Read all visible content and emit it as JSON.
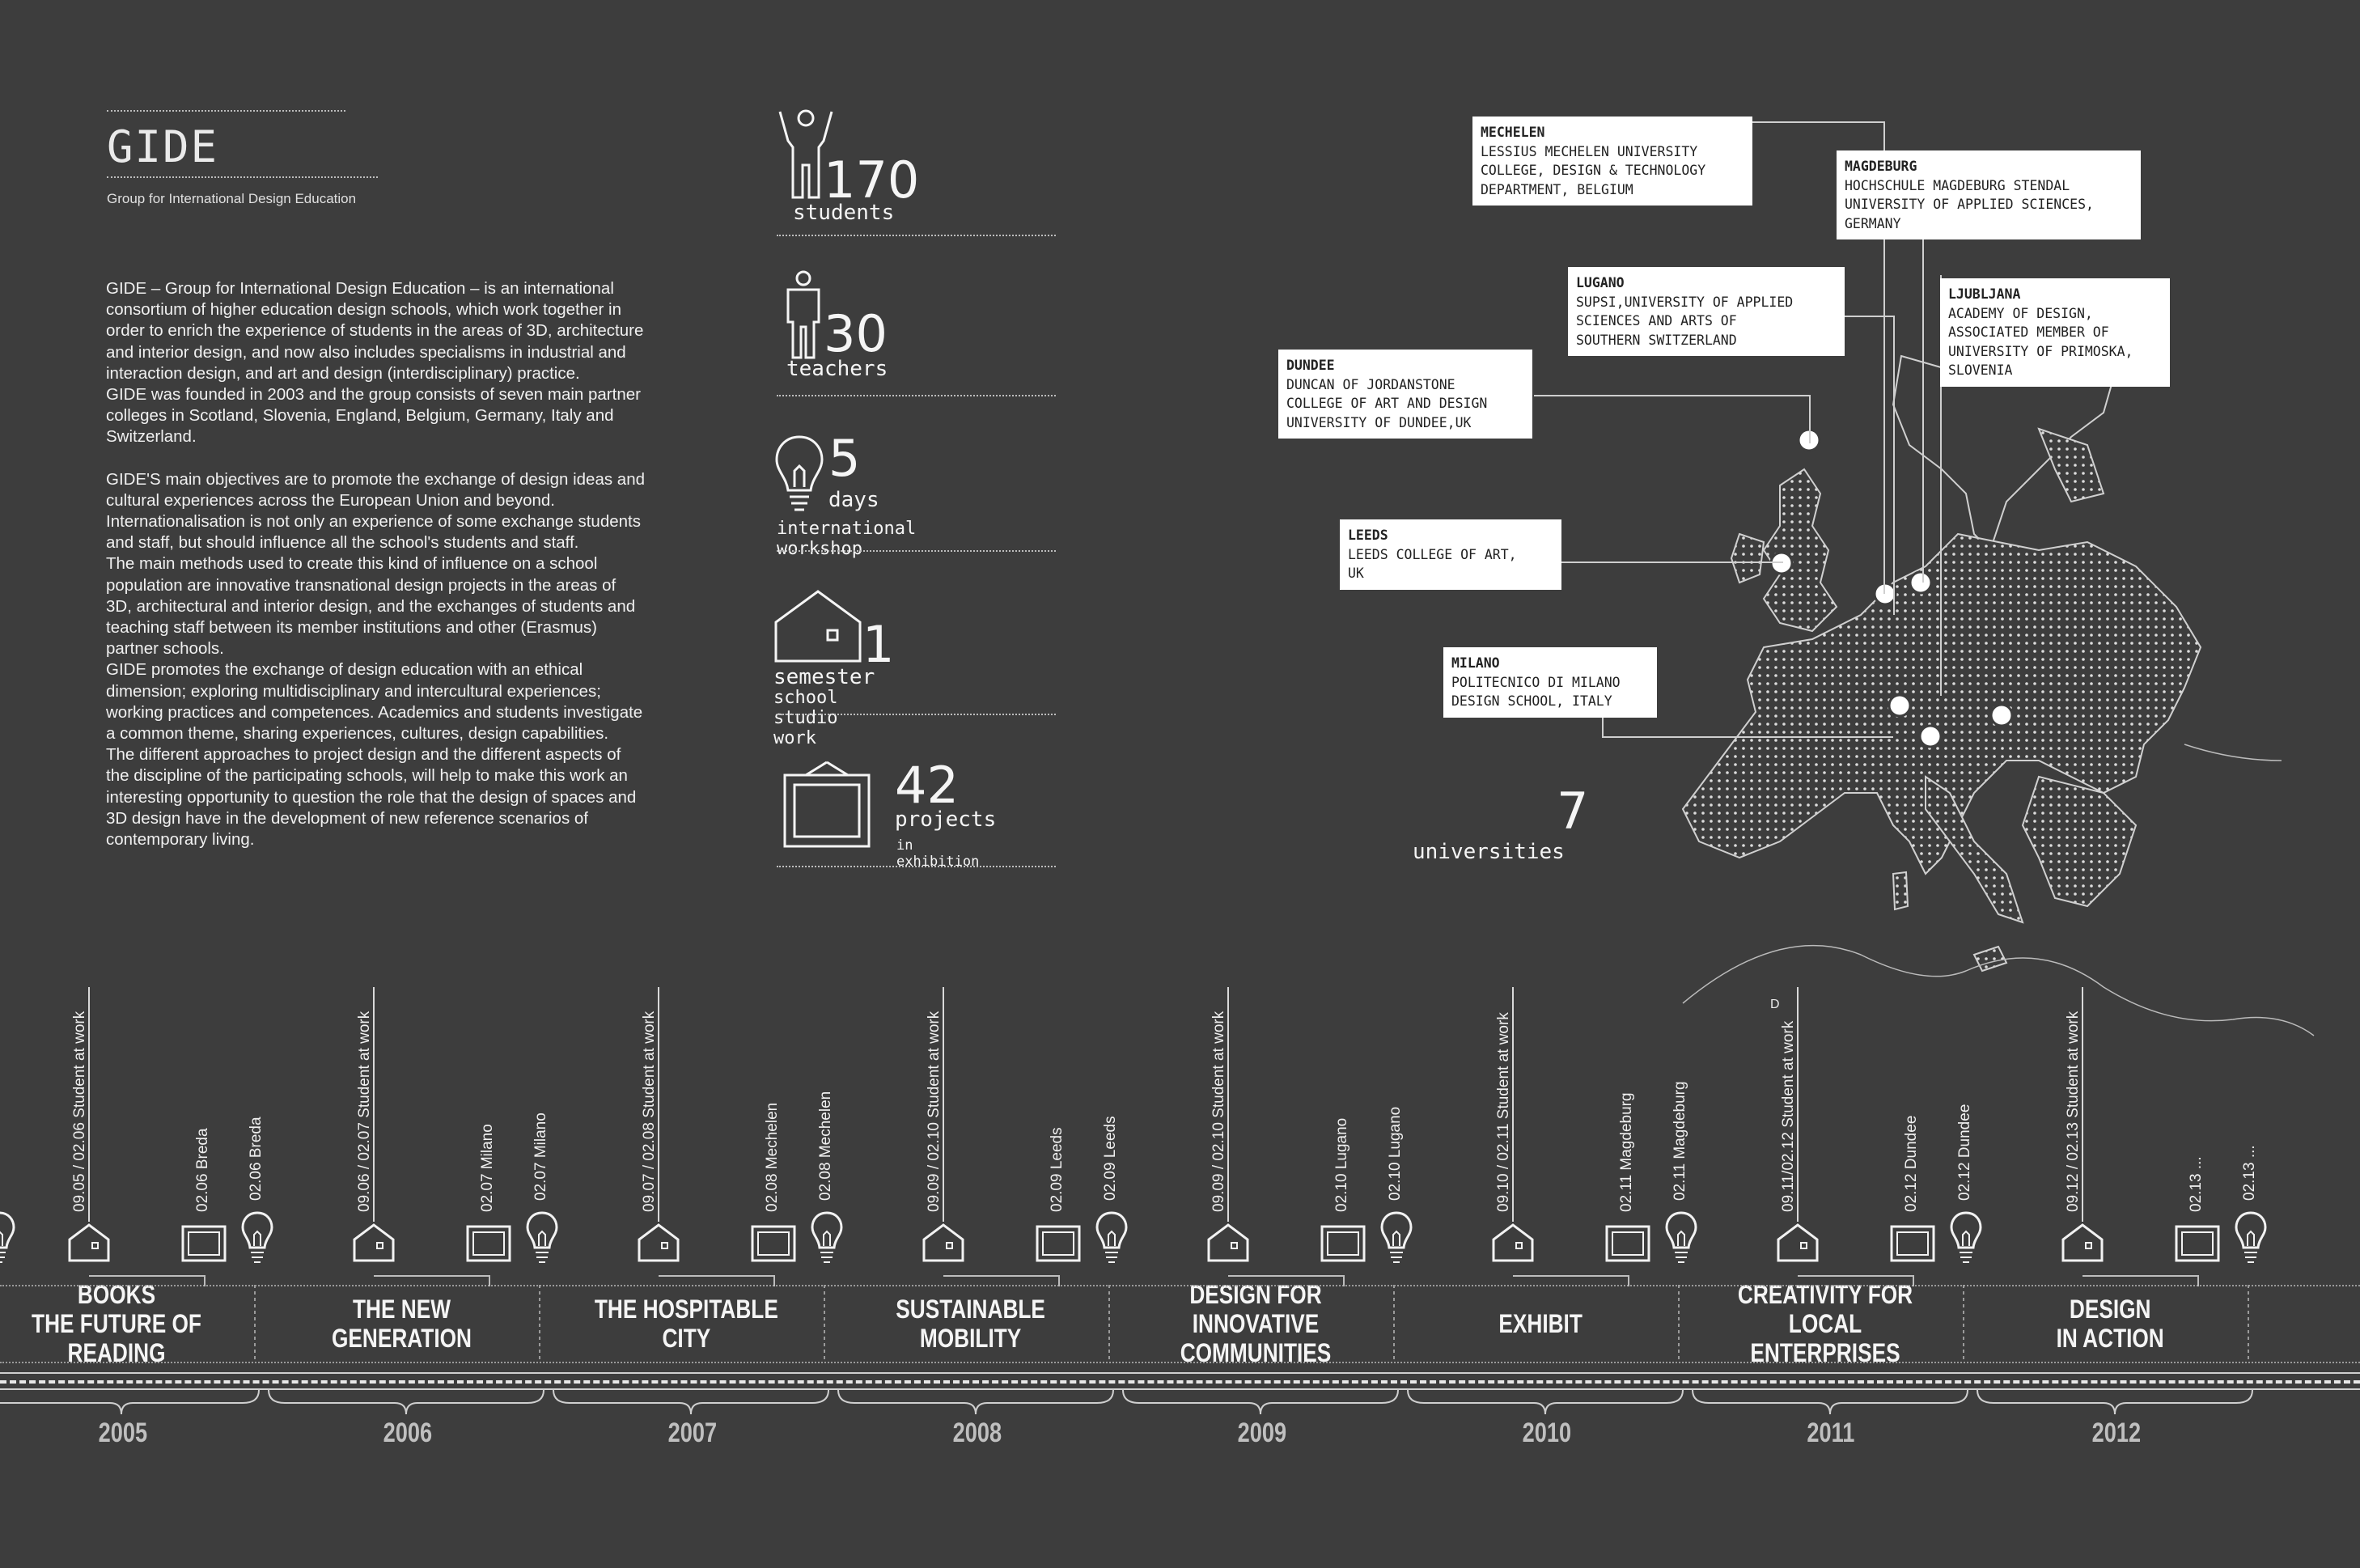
{
  "header": {
    "logo": "GIDE",
    "subtitle": "Group for International Design Education"
  },
  "intro": {
    "p1": "GIDE – Group for International Design Education – is an international\nconsortium of higher education design schools, which work together in\norder to enrich the experience of students in the areas of 3D, architecture\nand interior design, and now also includes specialisms in industrial and\ninteraction design, and art and design (interdisciplinary) practice.\nGIDE was founded in 2003 and the group consists of seven main partner\ncolleges in Scotland, Slovenia, England, Belgium, Germany, Italy and\nSwitzerland.",
    "p2": "GIDE'S main objectives are to promote the exchange of design ideas and\ncultural experiences across the European Union and beyond.\nInternationalisation is not only an experience of some exchange students\nand staff, but should influence all the school's students and staff.\n The main methods used to create this kind of influence on a school\npopulation are innovative transnational design projects in the areas of\n3D, architectural and interior design, and the exchanges of students and\nteaching staff between its member institutions and other (Erasmus)\npartner schools.\nGIDE promotes the exchange of design education with an ethical\ndimension; exploring multidisciplinary and intercultural experiences;\nworking practices and competences. Academics and students investigate\na common theme, sharing experiences, cultures, design capabilities.\nThe different approaches to project design and the different aspects of\nthe discipline of the participating schools, will help to make this work an\ninteresting opportunity to question the role that the design of spaces and\n3D design have in the development of new reference scenarios of\ncontemporary living."
  },
  "stats": {
    "students": {
      "num": "170",
      "label": "students"
    },
    "teachers": {
      "num": "30",
      "label": "teachers"
    },
    "days": {
      "num": "5",
      "label": "days",
      "sub": "international workshop"
    },
    "semester": {
      "num": "1",
      "label": "semester",
      "sub": "school studio work"
    },
    "projects": {
      "num": "42",
      "label": "projects",
      "sub": "in exhibition"
    },
    "universities": {
      "num": "7",
      "label": "universities"
    }
  },
  "universities": [
    {
      "city": "MECHELEN",
      "name": "LESSIUS MECHELEN UNIVERSITY\nCOLLEGE, DESIGN & TECHNOLOGY\nDEPARTMENT, BELGIUM"
    },
    {
      "city": "MAGDEBURG",
      "name": "HOCHSCHULE MAGDEBURG STENDAL\nUNIVERSITY OF APPLIED SCIENCES,\nGERMANY"
    },
    {
      "city": "LUGANO",
      "name": "SUPSI,UNIVERSITY OF APPLIED\nSCIENCES AND ARTS OF\nSOUTHERN SWITZERLAND"
    },
    {
      "city": "LJUBLJANA",
      "name": "ACADEMY OF DESIGN,\nASSOCIATED MEMBER OF\nUNIVERSITY OF PRIMOSKA,\nSLOVENIA"
    },
    {
      "city": "DUNDEE",
      "name": "DUNCAN OF JORDANSTONE\nCOLLEGE OF ART AND DESIGN\nUNIVERSITY OF DUNDEE,UK"
    },
    {
      "city": "LEEDS",
      "name": "LEEDS COLLEGE OF ART,\nUK"
    },
    {
      "city": "MILANO",
      "name": "POLITECNICO DI MILANO\nDESIGN SCHOOL, ITALY"
    }
  ],
  "map": {
    "marker": "D"
  },
  "timeline": {
    "themes": [
      "BOOKS\nTHE FUTURE OF READING",
      "THE NEW\nGENERATION",
      "THE HOSPITABLE\nCITY",
      "SUSTAINABLE\nMOBILITY",
      "DESIGN FOR INNOVATIVE\nCOMMUNITIES",
      "EXHIBIT",
      "CREATIVITY FOR LOCAL\nENTERPRISES",
      "DESIGN\nIN ACTION"
    ],
    "years": [
      "2005",
      "2006",
      "2007",
      "2008",
      "2009",
      "2010",
      "2011",
      "2012"
    ],
    "events": [
      [
        "09.05 / 02.06 Student at work",
        "02.06 Breda",
        "02.06 Breda"
      ],
      [
        "09.06 / 02.07 Student at work",
        "02.07 Milano",
        "02.07 Milano"
      ],
      [
        "09.07 / 02.08 Student at work",
        "02.08 Mechelen",
        "02.08 Mechelen"
      ],
      [
        "09.09 / 02.10 Student at work",
        "02.09 Leeds",
        "02.09 Leeds"
      ],
      [
        "09.09 / 02.10 Student at work",
        "02.10 Lugano",
        "02.10 Lugano"
      ],
      [
        "09.10 / 02.11 Student at work",
        "02.11 Magdeburg",
        "02.11 Magdeburg"
      ],
      [
        "09.11/02.12 Student at work",
        "02.12 Dundee",
        "02.12 Dundee"
      ],
      [
        "09.12 / 02.13 Student at work",
        "02.13 ...",
        "02.13 ..."
      ]
    ]
  }
}
